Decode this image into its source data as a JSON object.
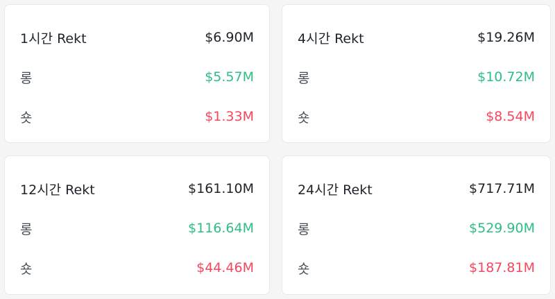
{
  "colors": {
    "long": "#2ebd85",
    "short": "#f6465d",
    "text": "#1e2329"
  },
  "cards": [
    {
      "title": "1시간 Rekt",
      "total": "$6.90M",
      "long_label": "롱",
      "long_value": "$5.57M",
      "short_label": "숏",
      "short_value": "$1.33M"
    },
    {
      "title": "4시간 Rekt",
      "total": "$19.26M",
      "long_label": "롱",
      "long_value": "$10.72M",
      "short_label": "숏",
      "short_value": "$8.54M"
    },
    {
      "title": "12시간 Rekt",
      "total": "$161.10M",
      "long_label": "롱",
      "long_value": "$116.64M",
      "short_label": "숏",
      "short_value": "$44.46M"
    },
    {
      "title": "24시간 Rekt",
      "total": "$717.71M",
      "long_label": "롱",
      "long_value": "$529.90M",
      "short_label": "숏",
      "short_value": "$187.81M"
    }
  ]
}
